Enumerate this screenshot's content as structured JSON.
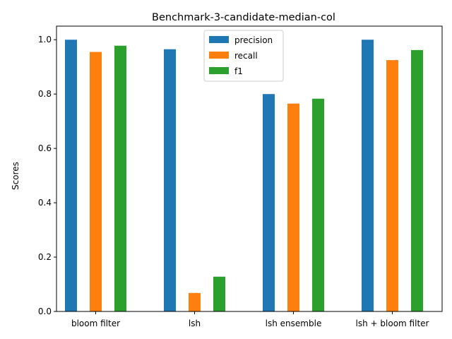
{
  "chart_data": {
    "type": "bar",
    "title": "Benchmark-3-candidate-median-col",
    "xlabel": "",
    "ylabel": "Scores",
    "categories": [
      "bloom filter",
      "lsh",
      "lsh ensemble",
      "lsh + bloom filter"
    ],
    "series": [
      {
        "name": "precision",
        "color": "#1f77b4",
        "values": [
          1.0,
          0.965,
          0.8,
          1.0
        ]
      },
      {
        "name": "recall",
        "color": "#ff7f0e",
        "values": [
          0.955,
          0.068,
          0.765,
          0.925
        ]
      },
      {
        "name": "f1",
        "color": "#2ca02c",
        "values": [
          0.978,
          0.128,
          0.783,
          0.962
        ]
      }
    ],
    "ylim": [
      0,
      1.05
    ],
    "yticks": [
      "0.0",
      "0.2",
      "0.4",
      "0.6",
      "0.8",
      "1.0"
    ],
    "grid": false,
    "legend_position": "top-center"
  }
}
